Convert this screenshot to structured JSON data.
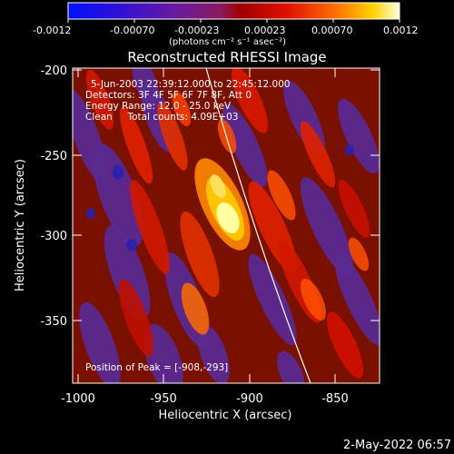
{
  "colorbar": {
    "ticks": [
      "-0.0012",
      "-0.00070",
      "-0.00023",
      "0.00023",
      "0.00070",
      "0.0012"
    ],
    "unit_label": "(photons cm⁻² s⁻¹ asec⁻²)"
  },
  "plot": {
    "title": "Reconstructed RHESSI Image",
    "info_lines": [
      "5-Jun-2003 22:39:12.000 to 22:45:12.000",
      "Detectors: 3F 4F 5F 6F 7F 8F, Att 0",
      "Energy Range: 12.0 - 25.0 keV",
      "Clean     Total counts: 4.09E+03"
    ],
    "peak_label": "Position of Peak = [-908,-293]",
    "xlabel": "Heliocentric X (arcsec)",
    "ylabel": "Heliocentric Y (arcsec)",
    "xticks": [
      "-1000",
      "-950",
      "-900",
      "-850"
    ],
    "yticks": [
      "-200",
      "-250",
      "-300",
      "-350"
    ]
  },
  "footer": {
    "timestamp": "2-May-2022 06:57"
  },
  "colors": {
    "background": "#000000",
    "text": "#ffffff"
  }
}
